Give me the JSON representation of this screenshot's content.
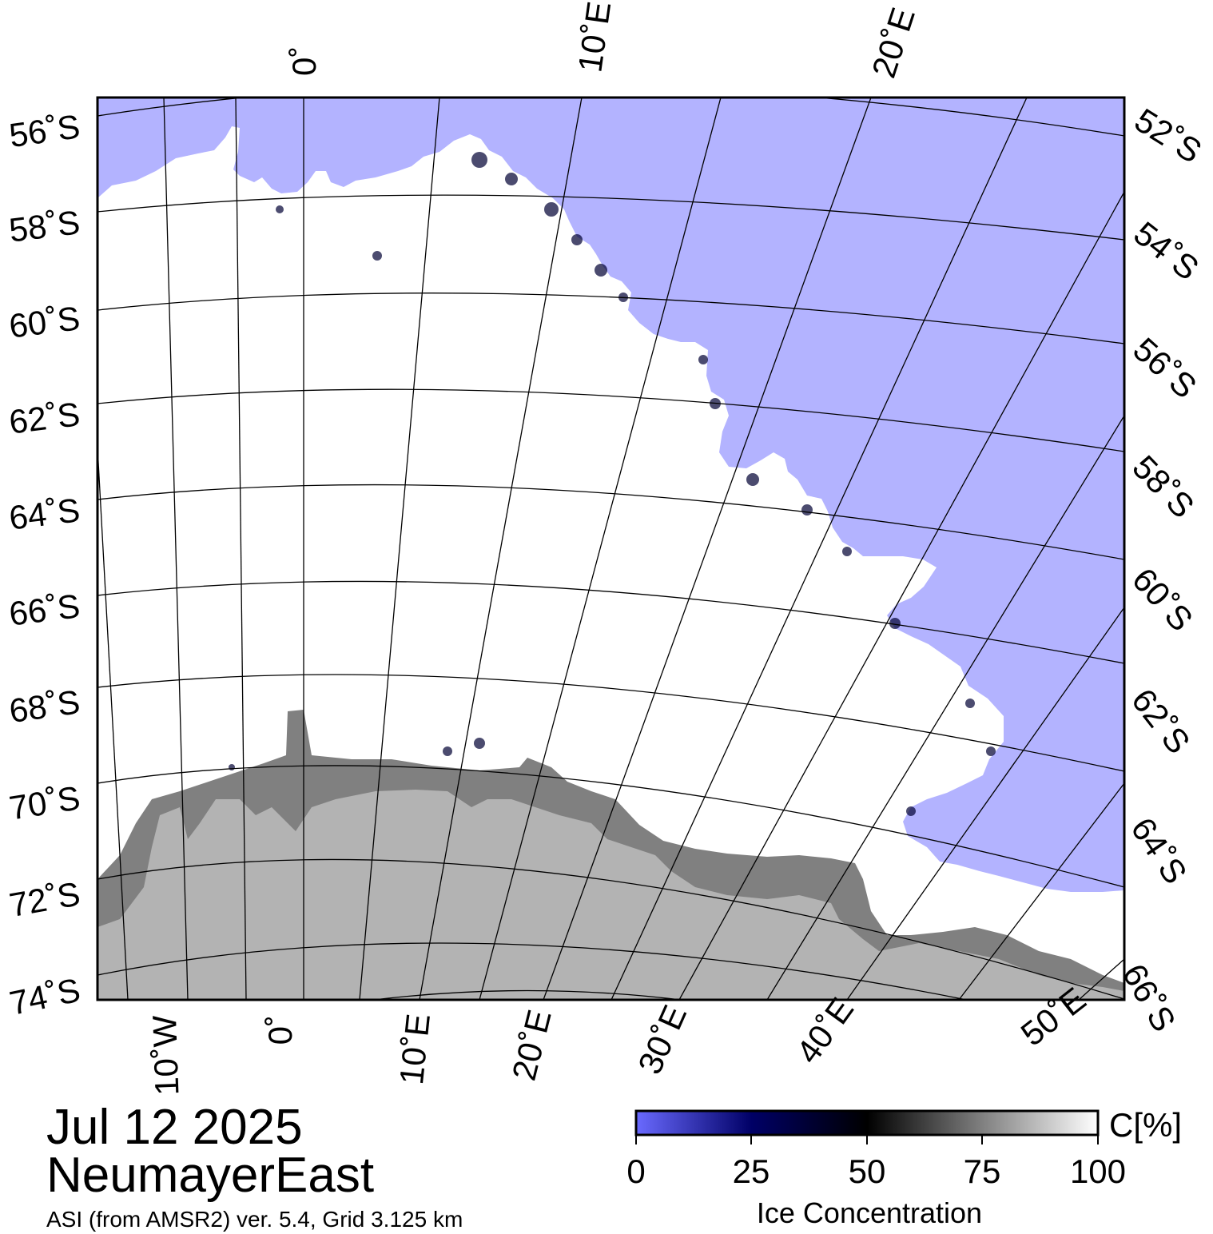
{
  "date": "Jul 12 2025",
  "region": "NeumayerEast",
  "source": "ASI (from AMSR2) ver. 5.4,  Grid 3.125 km",
  "colors": {
    "open_water": "#b3b3ff",
    "ice_full": "#ffffff",
    "ice_shelf": "#808080",
    "land": "#b3b3b3",
    "frame": "#000000"
  },
  "map": {
    "lat_labels_left": [
      "56˚S",
      "58˚S",
      "60˚S",
      "62˚S",
      "64˚S",
      "66˚S",
      "68˚S",
      "70˚S",
      "72˚S",
      "74˚S"
    ],
    "lat_labels_right": [
      "52˚S",
      "54˚S",
      "56˚S",
      "58˚S",
      "60˚S",
      "62˚S",
      "64˚S",
      "66˚S"
    ],
    "lon_labels_top": [
      "0˚",
      "10˚E",
      "20˚E"
    ],
    "lon_labels_bottom": [
      "10˚W",
      "0˚",
      "10˚E",
      "20˚E",
      "30˚E",
      "40˚E",
      "50˚E"
    ]
  },
  "colorbar": {
    "title": "Ice Concentration",
    "unit": "C[%]",
    "ticks": [
      "0",
      "25",
      "50",
      "75",
      "100"
    ],
    "stops": [
      "#6a6aff",
      "#000066",
      "#000000",
      "#808080",
      "#ffffff"
    ]
  }
}
